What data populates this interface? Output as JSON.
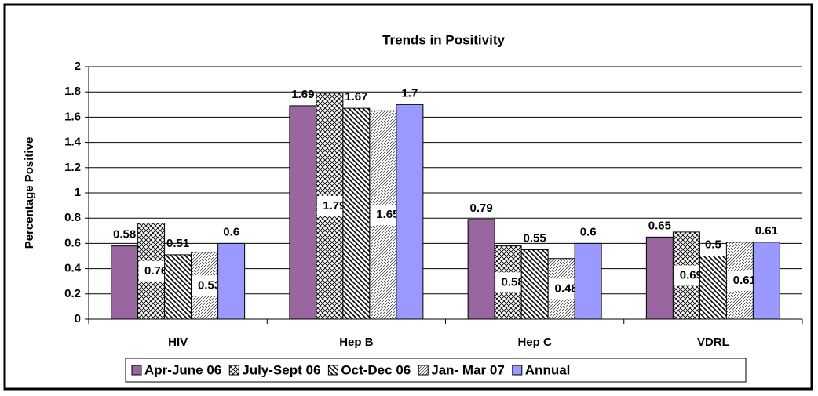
{
  "chart_data": {
    "type": "bar",
    "title": "Trends in Positivity",
    "y_label": "Percentage Positive",
    "categories": [
      "HIV",
      "Hep B",
      "Hep C",
      "VDRL"
    ],
    "series": [
      {
        "name": "Apr-June 06",
        "color": "#9966a0",
        "values": [
          0.58,
          1.69,
          0.79,
          0.65
        ]
      },
      {
        "name": "July-Sept 06",
        "color": "#000000",
        "pattern": "crosshatch",
        "values": [
          0.76,
          1.79,
          0.58,
          0.69
        ]
      },
      {
        "name": "Oct-Dec 06",
        "color": "#000000",
        "pattern": "diagonal",
        "values": [
          0.51,
          1.67,
          0.55,
          0.5
        ]
      },
      {
        "name": "Jan- Mar 07",
        "color": "#000000",
        "pattern": "dots",
        "values": [
          0.53,
          1.65,
          0.48,
          0.61
        ]
      },
      {
        "name": "Annual",
        "color": "#9999ff",
        "values": [
          0.6,
          1.7,
          0.6,
          0.61
        ]
      }
    ],
    "ylim": [
      0,
      2
    ],
    "yticks": [
      0,
      0.2,
      0.4,
      0.6,
      0.8,
      1,
      1.2,
      1.4,
      1.6,
      1.8,
      2
    ],
    "grid": true,
    "legend": "bottom"
  }
}
